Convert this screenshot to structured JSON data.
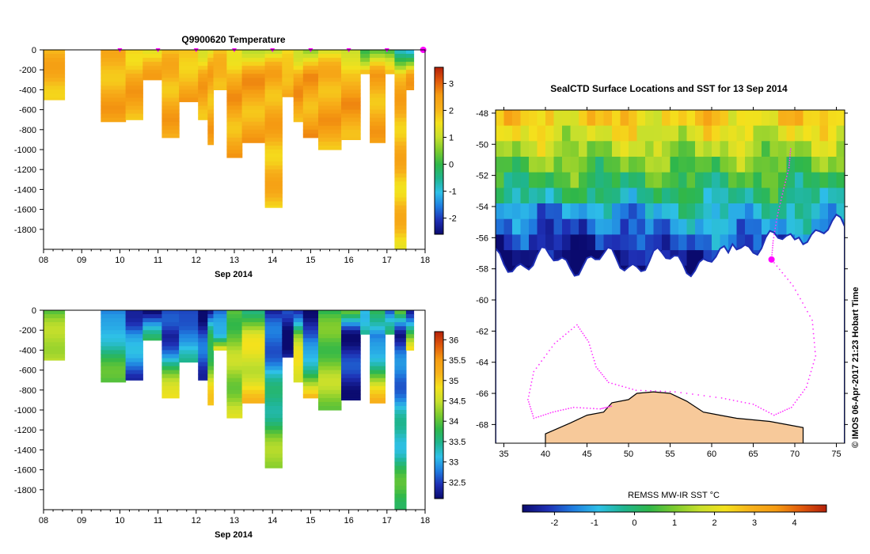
{
  "colors": {
    "land": "#f7c99a",
    "ice": "#ffffff",
    "track": "#ff33ff",
    "marker": "#ff00ff",
    "ramp": [
      "#0a0a6e",
      "#1e2fb4",
      "#1f7de0",
      "#2ec0e8",
      "#1fb58f",
      "#2fb74a",
      "#7ccb2e",
      "#c8e02c",
      "#f4e11c",
      "#f7b21a",
      "#f59b12",
      "#e15a0c",
      "#b4200a"
    ]
  },
  "chart_data": [
    {
      "id": "temp",
      "type": "heatmap",
      "title": "Q9900620  Temperature",
      "xlabel": "Sep 2014",
      "xticks": [
        "08",
        "09",
        "10",
        "11",
        "12",
        "13",
        "14",
        "15",
        "16",
        "17",
        "18"
      ],
      "xlim": [
        8,
        18
      ],
      "yticks": [
        0,
        -200,
        -400,
        -600,
        -800,
        -1000,
        -1200,
        -1400,
        -1600,
        -1800
      ],
      "ylim": [
        -2000,
        0
      ],
      "colorbar": {
        "ticks": [
          3,
          2,
          1,
          0,
          -1,
          -2
        ],
        "range": [
          -2.6,
          3.6
        ]
      },
      "profile_markers": [
        10,
        11,
        12,
        13,
        14,
        15,
        16,
        17,
        17.95
      ],
      "profiles": [
        {
          "t0": 8.0,
          "t1": 8.55,
          "depth": 500,
          "surface": 1.9,
          "mid": 2.1,
          "deep": 2.1
        },
        {
          "t0": 9.5,
          "t1": 10.15,
          "depth": 720,
          "surface": 1.9,
          "mid": 2.2,
          "deep": 2.2
        },
        {
          "t0": 10.15,
          "t1": 10.6,
          "depth": 700,
          "surface": 1.8,
          "mid": 2.2,
          "deep": 2.2
        },
        {
          "t0": 10.6,
          "t1": 11.1,
          "depth": 300,
          "surface": 1.7,
          "mid": 2.1,
          "deep": 2.1
        },
        {
          "t0": 11.1,
          "t1": 11.55,
          "depth": 880,
          "surface": 1.6,
          "mid": 2.2,
          "deep": 2.2
        },
        {
          "t0": 11.55,
          "t1": 12.05,
          "depth": 520,
          "surface": 1.5,
          "mid": 2.2,
          "deep": 2.2
        },
        {
          "t0": 12.05,
          "t1": 12.3,
          "depth": 700,
          "surface": 1.5,
          "mid": 2.2,
          "deep": 2.2
        },
        {
          "t0": 12.3,
          "t1": 12.45,
          "depth": 950,
          "surface": 1.5,
          "mid": 2.2,
          "deep": 2.2
        },
        {
          "t0": 12.45,
          "t1": 12.8,
          "depth": 400,
          "surface": 1.4,
          "mid": 2.3,
          "deep": 2.3
        },
        {
          "t0": 12.8,
          "t1": 13.2,
          "depth": 1080,
          "surface": 1.3,
          "mid": 2.3,
          "deep": 2.2
        },
        {
          "t0": 13.2,
          "t1": 13.8,
          "depth": 930,
          "surface": 1.3,
          "mid": 2.3,
          "deep": 2.2
        },
        {
          "t0": 13.8,
          "t1": 14.25,
          "depth": 1580,
          "surface": 0.9,
          "mid": 2.3,
          "deep": 1.9
        },
        {
          "t0": 14.25,
          "t1": 14.55,
          "depth": 470,
          "surface": 1.1,
          "mid": 2.3,
          "deep": 2.3
        },
        {
          "t0": 14.55,
          "t1": 14.8,
          "depth": 720,
          "surface": 1.1,
          "mid": 2.3,
          "deep": 2.3
        },
        {
          "t0": 14.8,
          "t1": 15.2,
          "depth": 880,
          "surface": 1.0,
          "mid": 2.3,
          "deep": 2.3
        },
        {
          "t0": 15.2,
          "t1": 15.8,
          "depth": 1000,
          "surface": 0.9,
          "mid": 2.3,
          "deep": 2.2
        },
        {
          "t0": 15.8,
          "t1": 16.3,
          "depth": 900,
          "surface": 0.6,
          "mid": 2.3,
          "deep": 2.3
        },
        {
          "t0": 16.3,
          "t1": 16.55,
          "depth": 240,
          "surface": 0.2,
          "mid": 2.2,
          "deep": 2.2
        },
        {
          "t0": 16.55,
          "t1": 16.95,
          "depth": 930,
          "surface": 0.5,
          "mid": 2.2,
          "deep": 2.2
        },
        {
          "t0": 16.95,
          "t1": 17.2,
          "depth": 240,
          "surface": -0.4,
          "mid": 2.2,
          "deep": 2.2
        },
        {
          "t0": 17.2,
          "t1": 17.5,
          "depth": 2000,
          "surface": -1.2,
          "mid": 2.2,
          "deep": 1.8
        },
        {
          "t0": 17.5,
          "t1": 17.7,
          "depth": 400,
          "surface": -0.8,
          "mid": 2.2,
          "deep": 2.2
        }
      ]
    },
    {
      "id": "sal",
      "type": "heatmap",
      "title": "",
      "xlabel": "Sep 2014",
      "xticks": [
        "08",
        "09",
        "10",
        "11",
        "12",
        "13",
        "14",
        "15",
        "16",
        "17",
        "18"
      ],
      "xlim": [
        8,
        18
      ],
      "yticks": [
        0,
        -200,
        -400,
        -600,
        -800,
        -1000,
        -1200,
        -1400,
        -1600,
        -1800
      ],
      "ylim": [
        -2000,
        0
      ],
      "colorbar": {
        "ticks": [
          36,
          35.5,
          35,
          34.5,
          34,
          33.5,
          33,
          32.5
        ],
        "range": [
          32.1,
          36.2
        ]
      },
      "profiles": [
        {
          "t0": 8.0,
          "t1": 8.55,
          "depth": 500,
          "surface": 33.9,
          "mid": 34.3,
          "deep": 34.7
        },
        {
          "t0": 9.5,
          "t1": 10.15,
          "depth": 720,
          "surface": 32.5,
          "mid": 33.4,
          "deep": 33.9
        },
        {
          "t0": 10.15,
          "t1": 10.6,
          "depth": 700,
          "surface": 32.4,
          "mid": 33.0,
          "deep": 32.6
        },
        {
          "t0": 10.6,
          "t1": 11.1,
          "depth": 300,
          "surface": 32.3,
          "mid": 33.3,
          "deep": 33.5
        },
        {
          "t0": 11.1,
          "t1": 11.55,
          "depth": 880,
          "surface": 32.4,
          "mid": 32.3,
          "deep": 34.9
        },
        {
          "t0": 11.55,
          "t1": 12.05,
          "depth": 520,
          "surface": 32.3,
          "mid": 33.1,
          "deep": 33.2
        },
        {
          "t0": 12.05,
          "t1": 12.3,
          "depth": 700,
          "surface": 32.3,
          "mid": 32.5,
          "deep": 32.6
        },
        {
          "t0": 12.3,
          "t1": 12.45,
          "depth": 950,
          "surface": 32.3,
          "mid": 33.5,
          "deep": 35.0
        },
        {
          "t0": 12.45,
          "t1": 12.8,
          "depth": 400,
          "surface": 32.4,
          "mid": 33.2,
          "deep": 35.2
        },
        {
          "t0": 12.8,
          "t1": 13.2,
          "depth": 1080,
          "surface": 33.9,
          "mid": 34.2,
          "deep": 34.4
        },
        {
          "t0": 13.2,
          "t1": 13.8,
          "depth": 930,
          "surface": 33.8,
          "mid": 34.5,
          "deep": 34.9
        },
        {
          "t0": 13.8,
          "t1": 14.25,
          "depth": 1580,
          "surface": 32.3,
          "mid": 32.6,
          "deep": 34.4
        },
        {
          "t0": 14.25,
          "t1": 14.55,
          "depth": 470,
          "surface": 32.3,
          "mid": 32.2,
          "deep": 32.3
        },
        {
          "t0": 14.55,
          "t1": 14.8,
          "depth": 720,
          "surface": 32.4,
          "mid": 34.3,
          "deep": 34.9
        },
        {
          "t0": 14.8,
          "t1": 15.2,
          "depth": 880,
          "surface": 32.3,
          "mid": 32.3,
          "deep": 34.9
        },
        {
          "t0": 15.2,
          "t1": 15.8,
          "depth": 1000,
          "surface": 33.6,
          "mid": 34.1,
          "deep": 34.3
        },
        {
          "t0": 15.8,
          "t1": 16.3,
          "depth": 900,
          "surface": 33.9,
          "mid": 32.3,
          "deep": 32.4
        },
        {
          "t0": 16.3,
          "t1": 16.55,
          "depth": 240,
          "surface": 33.3,
          "mid": 33.5,
          "deep": 33.8
        },
        {
          "t0": 16.55,
          "t1": 16.95,
          "depth": 930,
          "surface": 34.0,
          "mid": 32.5,
          "deep": 35.1
        },
        {
          "t0": 16.95,
          "t1": 17.2,
          "depth": 240,
          "surface": 32.3,
          "mid": 33.8,
          "deep": 33.6
        },
        {
          "t0": 17.2,
          "t1": 17.5,
          "depth": 2000,
          "surface": 34.0,
          "mid": 32.4,
          "deep": 34.0
        },
        {
          "t0": 17.5,
          "t1": 17.7,
          "depth": 400,
          "surface": 32.5,
          "mid": 33.8,
          "deep": 34.7
        }
      ]
    },
    {
      "id": "map",
      "type": "heatmap",
      "title": "SealCTD Surface Locations and SST for 13 Sep 2014",
      "xticks": [
        35,
        40,
        45,
        50,
        55,
        60,
        65,
        70,
        75
      ],
      "xlim": [
        34,
        76
      ],
      "yticks": [
        -48,
        -50,
        -52,
        -54,
        -56,
        -58,
        -60,
        -62,
        -64,
        -66,
        -68
      ],
      "ylim": [
        -69.2,
        -47.8
      ],
      "colorbar": {
        "label": "REMSS MW-IR SST °C",
        "ticks": [
          -2,
          -1,
          0,
          1,
          2,
          3,
          4
        ],
        "range": [
          -2.8,
          4.8
        ]
      },
      "current_location": {
        "lon": 67.2,
        "lat": -57.4
      },
      "track": [
        [
          69.5,
          -50.3
        ],
        [
          69.3,
          -51.5
        ],
        [
          68.6,
          -53.0
        ],
        [
          67.9,
          -54.6
        ],
        [
          67.4,
          -56.2
        ],
        [
          67.2,
          -57.4
        ],
        [
          69.8,
          -59.1
        ],
        [
          72.1,
          -61.3
        ],
        [
          72.5,
          -63.6
        ],
        [
          71.4,
          -65.6
        ],
        [
          69.6,
          -66.9
        ],
        [
          67.5,
          -67.4
        ],
        [
          65.0,
          -66.7
        ],
        [
          61.2,
          -66.3
        ],
        [
          55.6,
          -65.9
        ],
        [
          50.9,
          -65.8
        ],
        [
          47.6,
          -65.3
        ],
        [
          46.1,
          -64.3
        ],
        [
          45.2,
          -62.7
        ],
        [
          43.8,
          -61.6
        ],
        [
          41.1,
          -62.8
        ],
        [
          38.6,
          -64.6
        ],
        [
          37.9,
          -66.4
        ],
        [
          38.6,
          -67.6
        ],
        [
          40.9,
          -67.2
        ],
        [
          43.4,
          -66.9
        ],
        [
          46.6,
          -67.0
        ],
        [
          48.1,
          -66.8
        ]
      ],
      "side_label": "© IMOS 06-Apr-2017 21:23 Hobart Time"
    }
  ]
}
